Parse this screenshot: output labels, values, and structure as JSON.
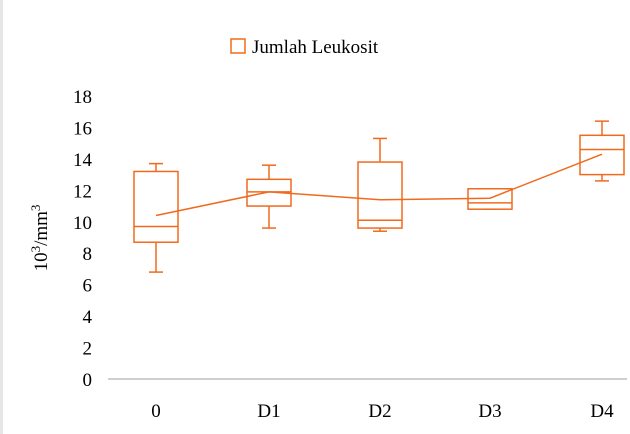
{
  "chart_data": {
    "type": "box",
    "categories": [
      "0",
      "D1",
      "D2",
      "D3",
      "D4"
    ],
    "ylabel": "10³/mm³",
    "ylim": [
      0,
      18
    ],
    "yticks": [
      "0",
      "2",
      "4",
      "6",
      "8",
      "10",
      "12",
      "14",
      "16",
      "18"
    ],
    "legend": {
      "label": "Jumlah Leukosit",
      "position": "top"
    },
    "grid": false,
    "color": "#f06a1e",
    "series": [
      {
        "name": "Jumlah Leukosit",
        "boxes": [
          {
            "category": "0",
            "min": 6.8,
            "q1": 8.7,
            "median": 9.7,
            "q3": 13.2,
            "max": 13.7
          },
          {
            "category": "D1",
            "min": 9.6,
            "q1": 11.0,
            "median": 11.9,
            "q3": 12.7,
            "max": 13.6
          },
          {
            "category": "D2",
            "min": 9.4,
            "q1": 9.6,
            "median": 10.1,
            "q3": 13.8,
            "max": 15.3
          },
          {
            "category": "D3",
            "min": 10.8,
            "q1": 10.8,
            "median": 11.2,
            "q3": 12.1,
            "max": 12.1
          },
          {
            "category": "D4",
            "min": 12.6,
            "q1": 13.0,
            "median": 14.6,
            "q3": 15.5,
            "max": 16.4
          }
        ],
        "means": [
          10.4,
          11.9,
          11.4,
          11.5,
          14.3
        ]
      }
    ]
  }
}
